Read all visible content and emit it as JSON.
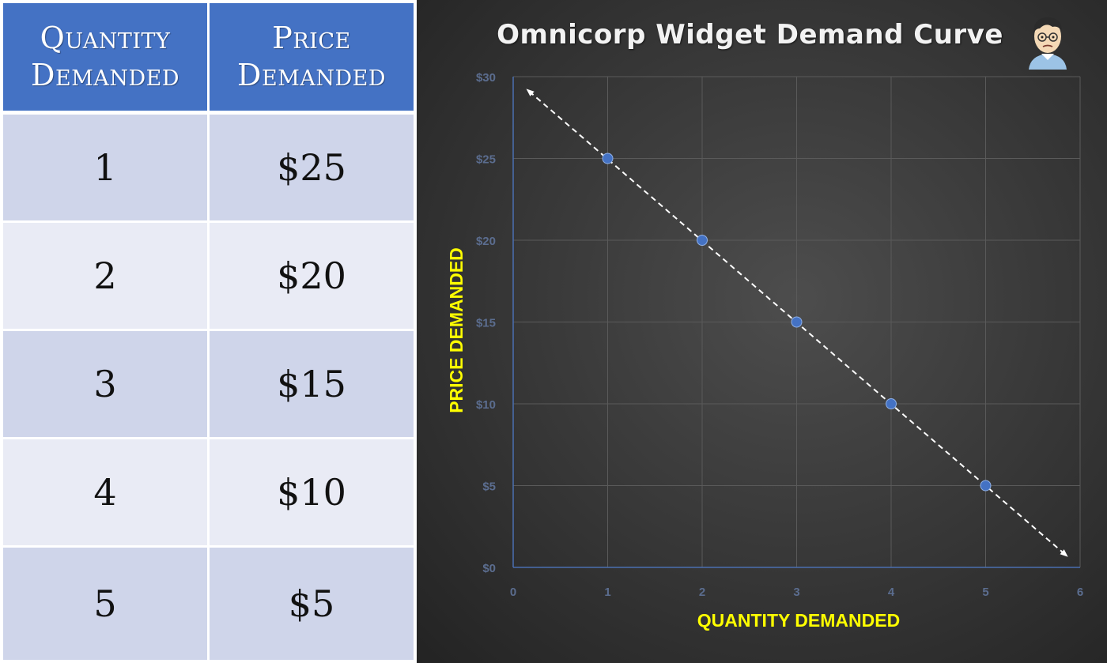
{
  "table": {
    "headers": [
      {
        "line1": "Quantity",
        "line2": "Demanded"
      },
      {
        "line1": "Price",
        "line2": "Demanded"
      }
    ],
    "rows": [
      {
        "quantity": "1",
        "price": "$25"
      },
      {
        "quantity": "2",
        "price": "$20"
      },
      {
        "quantity": "3",
        "price": "$15"
      },
      {
        "quantity": "4",
        "price": "$10"
      },
      {
        "quantity": "5",
        "price": "$5"
      }
    ]
  },
  "chart_data": {
    "type": "scatter",
    "title": "Omnicorp Widget Demand Curve",
    "xlabel": "QUANTITY DEMANDED",
    "ylabel": "PRICE DEMANDED",
    "xlim": [
      0,
      6
    ],
    "ylim": [
      0,
      30
    ],
    "xticks": [
      "0",
      "1",
      "2",
      "3",
      "4",
      "5",
      "6"
    ],
    "yticks": [
      "$0",
      "$5",
      "$10",
      "$15",
      "$20",
      "$25",
      "$30"
    ],
    "series": [
      {
        "x": [
          1,
          2,
          3,
          4,
          5
        ],
        "y": [
          25,
          20,
          15,
          10,
          5
        ]
      }
    ],
    "trendline": {
      "style": "dashed",
      "arrows": "both",
      "from": [
        0.17,
        29.1
      ],
      "to": [
        5.84,
        0.8
      ]
    },
    "grid": true,
    "colors": {
      "point": "#4472c4",
      "trendline": "#ffffff",
      "axis_labels": "#ffff00",
      "tick_labels": "#5b6d8f",
      "grid": "#5a5a5a"
    }
  }
}
